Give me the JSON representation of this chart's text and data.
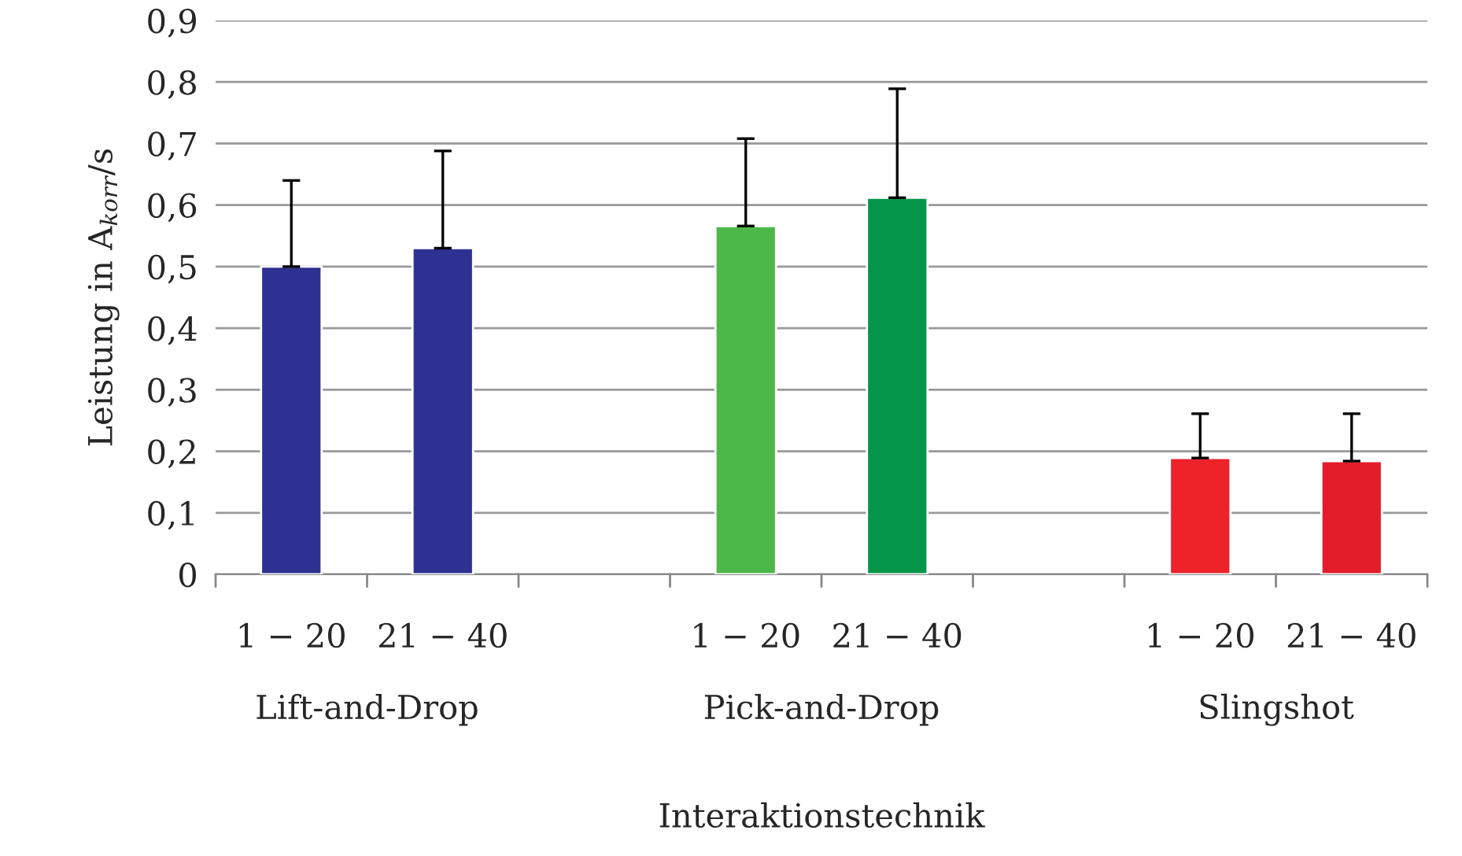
{
  "chart_data": {
    "type": "bar",
    "xlabel": "Interaktionstechnik",
    "ylabel": "Leistung in A$_{korr}$/s",
    "categories": [
      "1 − 20",
      "21 − 40",
      null,
      "1 − 20",
      "21 − 40",
      null,
      "1 − 20",
      "21 − 40"
    ],
    "values": [
      0.5,
      0.53,
      null,
      0.566,
      0.612,
      null,
      0.189,
      0.184
    ],
    "errors": [
      [
        0.5,
        0.64
      ],
      [
        0.53,
        0.688
      ],
      null,
      [
        0.566,
        0.708
      ],
      [
        0.612,
        0.789
      ],
      null,
      [
        0.189,
        0.261
      ],
      [
        0.184,
        0.261
      ]
    ],
    "colors": [
      "#2e3192",
      "#2e3192",
      null,
      "#4cb848",
      "#05964a",
      null,
      "#ee2229",
      "#e31c2a"
    ],
    "annotations": [
      "Lift-and-Drop",
      "Pick-and-Drop",
      "Slingshot"
    ],
    "ylim": [
      0,
      0.9
    ],
    "yticks": [
      0,
      {
        "value": 0.1,
        "label": "0,1"
      },
      {
        "value": 0.2,
        "label": "0,2"
      },
      {
        "value": 0.3,
        "label": "0,3"
      },
      {
        "value": 0.4,
        "label": "0,4"
      },
      {
        "value": 0.5,
        "label": "0,5"
      },
      {
        "value": 0.6,
        "label": "0,6"
      },
      {
        "value": 0.7,
        "label": "0,7"
      },
      {
        "value": 0.8,
        "label": "0,8"
      },
      {
        "value": 0.9,
        "label": "0,9"
      }
    ],
    "grid": "y",
    "legend": false
  }
}
